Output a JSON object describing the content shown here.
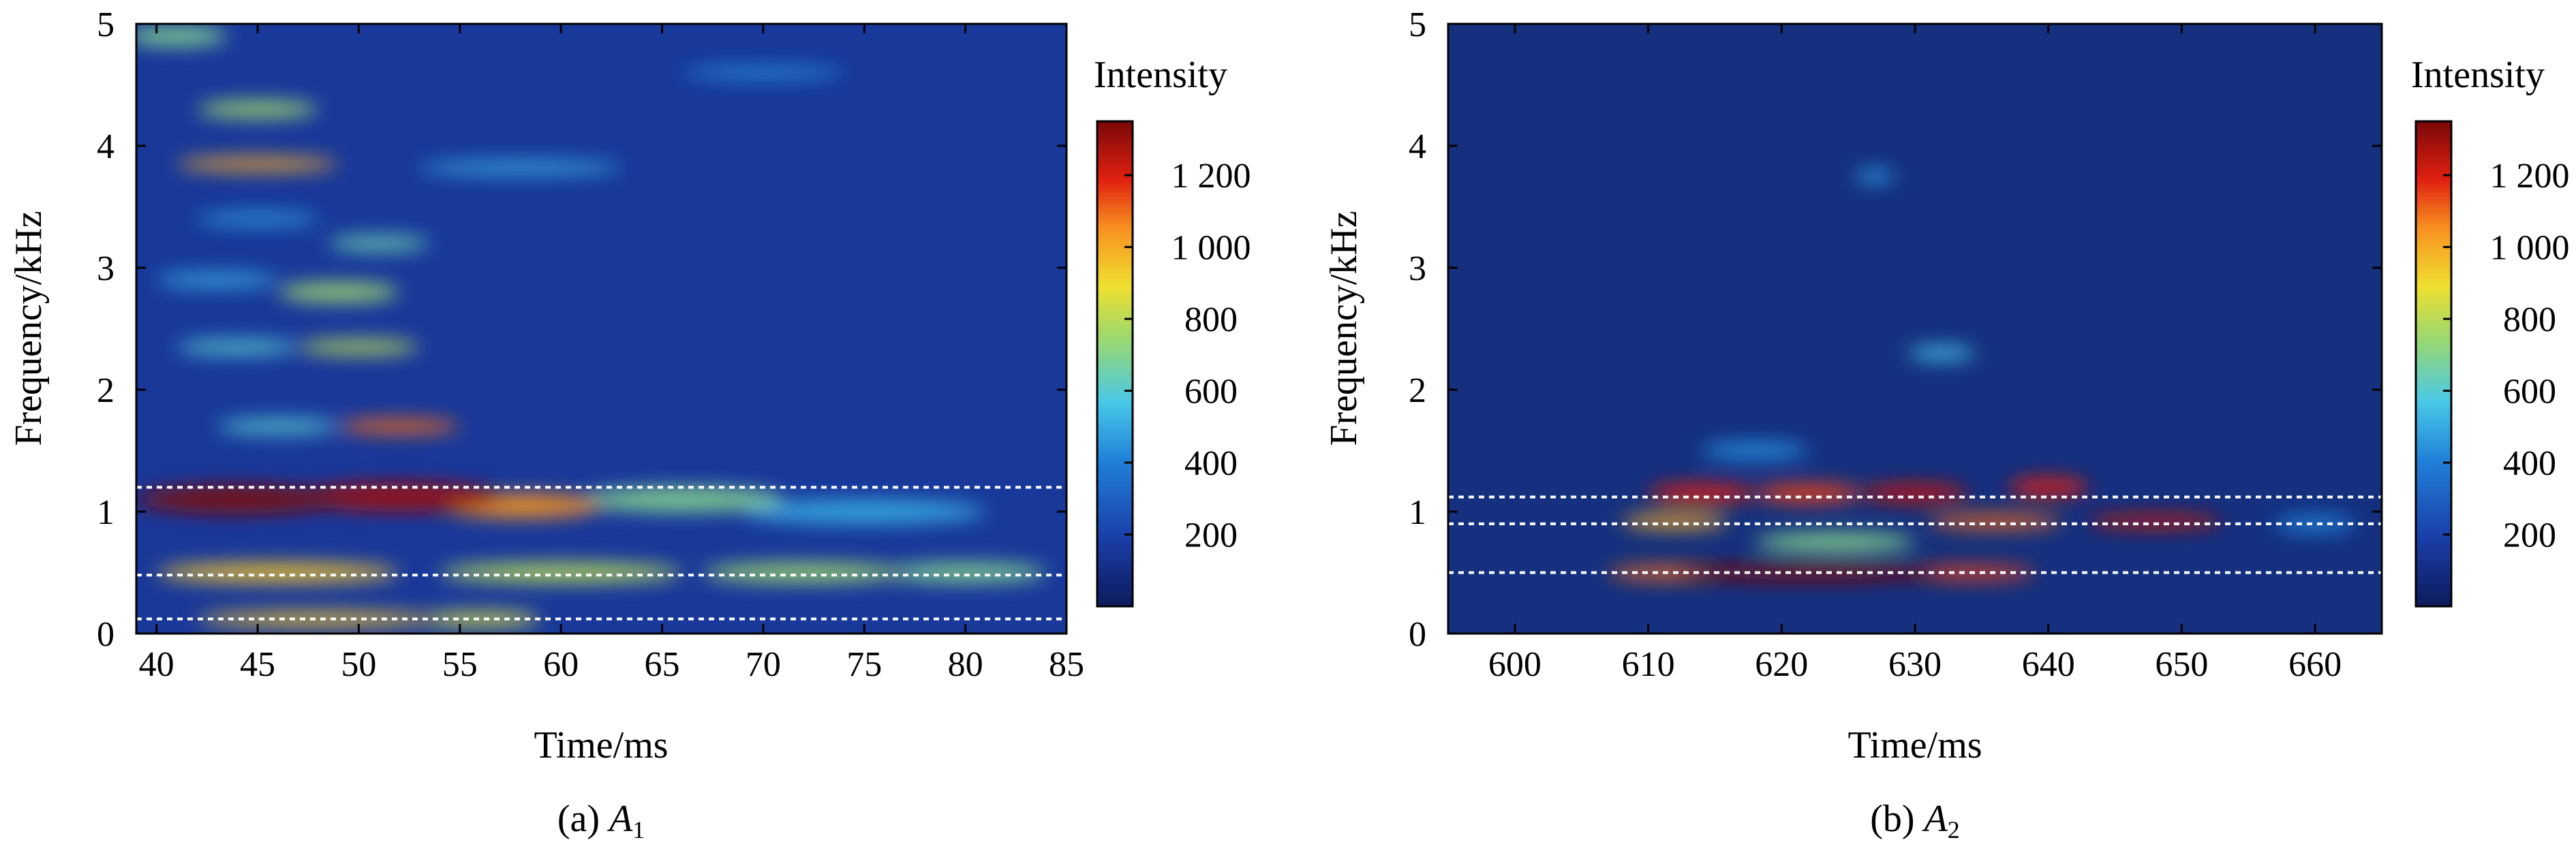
{
  "chart_data": [
    {
      "type": "heatmap",
      "caption_prefix": "(a) ",
      "caption_italic": "A",
      "caption_sub": "1",
      "xlabel": "Time/ms",
      "ylabel": "Frequency/kHz",
      "xlim": [
        39,
        85
      ],
      "ylim": [
        0,
        5
      ],
      "xticks": [
        40,
        45,
        50,
        55,
        60,
        65,
        70,
        75,
        80,
        85
      ],
      "yticks": [
        0,
        1,
        2,
        3,
        4,
        5
      ],
      "colorbar": {
        "title": "Intensity",
        "min": 0,
        "max": 1350,
        "ticks": [
          200,
          400,
          600,
          800,
          1000,
          1200
        ],
        "tick_labels": [
          "200",
          "400",
          "600",
          "800",
          "1 000",
          "1 200"
        ]
      },
      "reference_lines_khz": [
        1.2,
        0.48,
        0.12
      ],
      "hotspots": [
        {
          "t": 44,
          "f": 1.1,
          "intensity": 1350,
          "dt": 5,
          "df": 0.12
        },
        {
          "t": 52,
          "f": 1.12,
          "intensity": 1300,
          "dt": 5,
          "df": 0.12
        },
        {
          "t": 58,
          "f": 1.05,
          "intensity": 1050,
          "dt": 4,
          "df": 0.1
        },
        {
          "t": 66,
          "f": 1.1,
          "intensity": 700,
          "dt": 5,
          "df": 0.1
        },
        {
          "t": 75,
          "f": 1.0,
          "intensity": 500,
          "dt": 6,
          "df": 0.1
        },
        {
          "t": 46,
          "f": 0.5,
          "intensity": 950,
          "dt": 6,
          "df": 0.08
        },
        {
          "t": 60,
          "f": 0.5,
          "intensity": 800,
          "dt": 6,
          "df": 0.08
        },
        {
          "t": 72,
          "f": 0.5,
          "intensity": 750,
          "dt": 5,
          "df": 0.08
        },
        {
          "t": 80,
          "f": 0.5,
          "intensity": 700,
          "dt": 4,
          "df": 0.08
        },
        {
          "t": 48,
          "f": 0.12,
          "intensity": 950,
          "dt": 6,
          "df": 0.06
        },
        {
          "t": 56,
          "f": 0.12,
          "intensity": 850,
          "dt": 3,
          "df": 0.06
        },
        {
          "t": 52,
          "f": 1.7,
          "intensity": 1100,
          "dt": 3,
          "df": 0.06
        },
        {
          "t": 46,
          "f": 1.7,
          "intensity": 600,
          "dt": 3,
          "df": 0.06
        },
        {
          "t": 50,
          "f": 2.35,
          "intensity": 800,
          "dt": 3,
          "df": 0.06
        },
        {
          "t": 44,
          "f": 2.35,
          "intensity": 600,
          "dt": 3,
          "df": 0.06
        },
        {
          "t": 49,
          "f": 2.8,
          "intensity": 750,
          "dt": 3,
          "df": 0.08
        },
        {
          "t": 43,
          "f": 2.9,
          "intensity": 500,
          "dt": 3,
          "df": 0.06
        },
        {
          "t": 51,
          "f": 3.2,
          "intensity": 650,
          "dt": 2.5,
          "df": 0.06
        },
        {
          "t": 45,
          "f": 3.4,
          "intensity": 450,
          "dt": 3,
          "df": 0.06
        },
        {
          "t": 45,
          "f": 3.85,
          "intensity": 1000,
          "dt": 4,
          "df": 0.05
        },
        {
          "t": 58,
          "f": 3.82,
          "intensity": 500,
          "dt": 5,
          "df": 0.05
        },
        {
          "t": 45,
          "f": 4.3,
          "intensity": 750,
          "dt": 3,
          "df": 0.07
        },
        {
          "t": 41,
          "f": 4.9,
          "intensity": 700,
          "dt": 2.5,
          "df": 0.08
        },
        {
          "t": 70,
          "f": 4.6,
          "intensity": 420,
          "dt": 4,
          "df": 0.05
        }
      ]
    },
    {
      "type": "heatmap",
      "caption_prefix": "(b) ",
      "caption_italic": "A",
      "caption_sub": "2",
      "xlabel": "Time/ms",
      "ylabel": "Frequency/kHz",
      "xlim": [
        595,
        665
      ],
      "ylim": [
        0,
        5
      ],
      "xticks": [
        600,
        610,
        620,
        630,
        640,
        650,
        660
      ],
      "yticks": [
        0,
        1,
        2,
        3,
        4,
        5
      ],
      "colorbar": {
        "title": "Intensity",
        "min": 0,
        "max": 1350,
        "ticks": [
          200,
          400,
          600,
          800,
          1000,
          1200
        ],
        "tick_labels": [
          "200",
          "400",
          "600",
          "800",
          "1 000",
          "1 200"
        ]
      },
      "reference_lines_khz": [
        1.12,
        0.9,
        0.5
      ],
      "hotspots": [
        {
          "t": 622,
          "f": 0.5,
          "intensity": 1350,
          "dt": 10,
          "df": 0.07
        },
        {
          "t": 612,
          "f": 0.5,
          "intensity": 1100,
          "dt": 5,
          "df": 0.06
        },
        {
          "t": 634,
          "f": 0.5,
          "intensity": 1150,
          "dt": 5,
          "df": 0.06
        },
        {
          "t": 614,
          "f": 1.15,
          "intensity": 1200,
          "dt": 4,
          "df": 0.08
        },
        {
          "t": 622,
          "f": 1.15,
          "intensity": 1150,
          "dt": 4,
          "df": 0.08
        },
        {
          "t": 630,
          "f": 1.15,
          "intensity": 1250,
          "dt": 4,
          "df": 0.08
        },
        {
          "t": 640,
          "f": 1.2,
          "intensity": 1200,
          "dt": 3,
          "df": 0.08
        },
        {
          "t": 612,
          "f": 0.92,
          "intensity": 1000,
          "dt": 4,
          "df": 0.06
        },
        {
          "t": 636,
          "f": 0.92,
          "intensity": 1100,
          "dt": 5,
          "df": 0.06
        },
        {
          "t": 648,
          "f": 0.92,
          "intensity": 1250,
          "dt": 5,
          "df": 0.06
        },
        {
          "t": 624,
          "f": 0.75,
          "intensity": 700,
          "dt": 6,
          "df": 0.08
        },
        {
          "t": 632,
          "f": 2.3,
          "intensity": 550,
          "dt": 2.5,
          "df": 0.06
        },
        {
          "t": 627,
          "f": 3.75,
          "intensity": 450,
          "dt": 1.5,
          "df": 0.06
        },
        {
          "t": 618,
          "f": 1.5,
          "intensity": 420,
          "dt": 4,
          "df": 0.08
        },
        {
          "t": 660,
          "f": 0.9,
          "intensity": 380,
          "dt": 3,
          "df": 0.08
        }
      ]
    }
  ]
}
